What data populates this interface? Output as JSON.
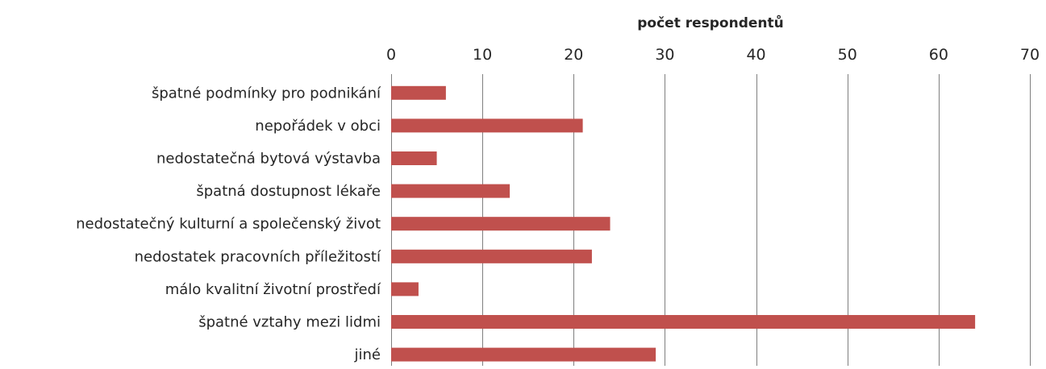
{
  "chart_data": {
    "type": "bar",
    "orientation": "horizontal",
    "title": "",
    "xlabel": "počet respondentů",
    "ylabel": "",
    "xlim": [
      0,
      70
    ],
    "x_ticks": [
      "0",
      "10",
      "20",
      "30",
      "40",
      "50",
      "60",
      "70"
    ],
    "x_axis_position": "top",
    "grid": true,
    "legend": "none",
    "bar_color": "#C0504D",
    "grid_color": "#7F7F7F",
    "categories": [
      "špatné podmínky pro podnikání",
      "nepořádek v obci",
      "nedostatečná bytová výstavba",
      "špatná dostupnost lékaře",
      "nedostatečný kulturní a společenský život",
      "nedostatek pracovních příležitostí",
      "málo kvalitní životní prostředí",
      "špatné vztahy mezi lidmi",
      "jiné"
    ],
    "values": [
      6,
      21,
      5,
      13,
      24,
      22,
      3,
      64,
      29
    ]
  }
}
